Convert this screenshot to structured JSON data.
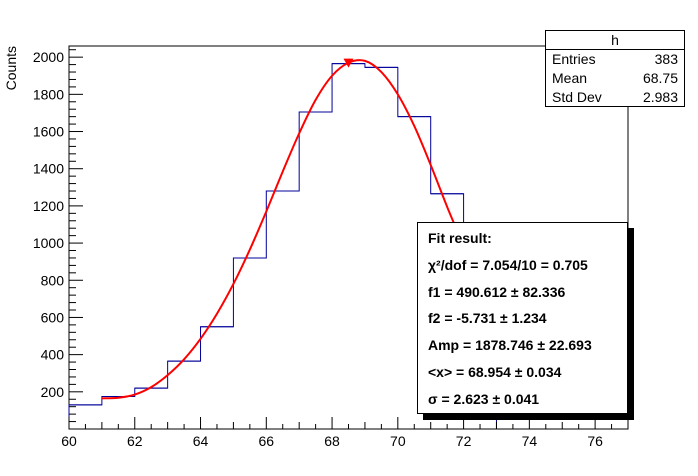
{
  "chart_data": {
    "type": "histogram",
    "ylabel": "Counts",
    "xlim": [
      60,
      77
    ],
    "ylim": [
      0,
      2060
    ],
    "x_ticks": [
      60,
      62,
      64,
      66,
      68,
      70,
      72,
      74,
      76
    ],
    "y_ticks": [
      200,
      400,
      600,
      800,
      1000,
      1200,
      1400,
      1600,
      1800,
      2000
    ],
    "bin_edges": [
      60,
      61,
      62,
      63,
      64,
      65,
      66,
      67,
      68,
      69,
      70,
      71,
      72,
      73,
      74,
      75,
      76,
      77
    ],
    "bin_values": [
      130,
      175,
      220,
      365,
      550,
      920,
      1280,
      1705,
      1965,
      1945,
      1680,
      1265,
      980,
      0,
      0,
      0,
      0
    ],
    "fit_points": {
      "x": [
        61.0,
        61.5,
        62.0,
        62.5,
        63.0,
        63.5,
        64.0,
        64.5,
        65.0,
        65.5,
        66.0,
        66.5,
        67.0,
        67.5,
        68.0,
        68.5,
        69.0,
        69.5,
        70.0,
        70.5,
        71.0,
        71.5,
        72.0
      ],
      "y": [
        165,
        168,
        185,
        225,
        290,
        375,
        485,
        620,
        780,
        965,
        1170,
        1385,
        1590,
        1770,
        1900,
        1970,
        1980,
        1920,
        1800,
        1630,
        1420,
        1195,
        985
      ]
    },
    "marker": {
      "x": 68.5,
      "y": 1965
    },
    "colors": {
      "histogram": "#000099",
      "fit": "#ff0000",
      "axis": "#000000"
    }
  },
  "stats": {
    "title": "h",
    "rows": [
      {
        "label": "Entries",
        "value": "383"
      },
      {
        "label": "Mean",
        "value": "68.75"
      },
      {
        "label": "Std Dev",
        "value": "2.983"
      }
    ]
  },
  "fit": {
    "lines": [
      "Fit result:",
      "χ²/dof = 7.054/10 = 0.705",
      "f1 = 490.612 ± 82.336",
      "f2 = -5.731 ± 1.234",
      "Amp = 1878.746 ± 22.693",
      "<x> = 68.954 ± 0.034",
      "σ = 2.623 ± 0.041"
    ]
  }
}
